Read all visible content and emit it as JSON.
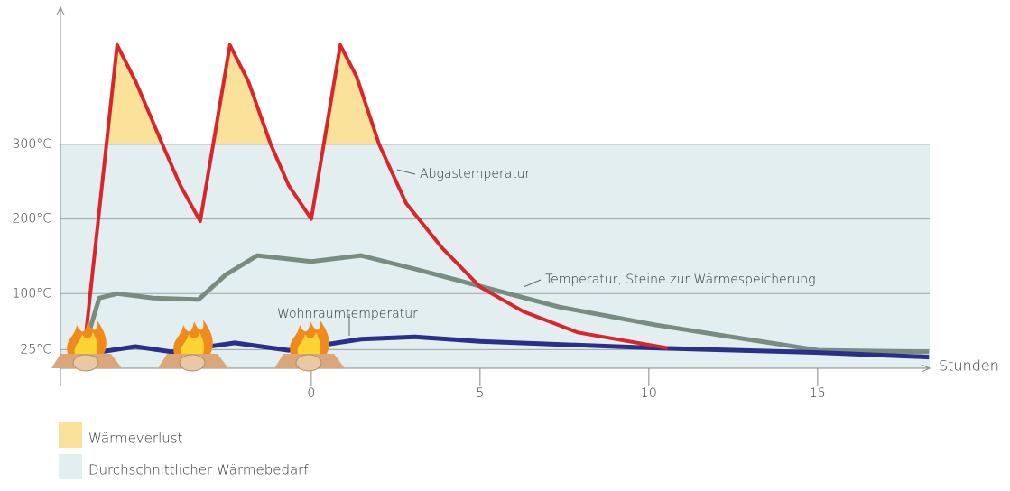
{
  "chart_data": {
    "type": "line",
    "x_label": "Stunden",
    "xlim": [
      -7.43,
      18.32
    ],
    "xticks": [
      0,
      5,
      10,
      15
    ],
    "ylim": [
      0,
      480
    ],
    "yticks": [
      {
        "value": 25,
        "label": "25°C"
      },
      {
        "value": 100,
        "label": "100°C"
      },
      {
        "value": 200,
        "label": "200°C"
      },
      {
        "value": 300,
        "label": "300°C"
      }
    ],
    "grid": true,
    "areas": [
      {
        "name": "Wärmeverlust",
        "color": "#fbe29b",
        "above": 300
      },
      {
        "name": "Durchschnittlicher Wärmebedarf",
        "color": "#e2eef0",
        "range": [
          0,
          300
        ]
      }
    ],
    "series": [
      {
        "name": "Abgastemperatur",
        "color": "#d9262a",
        "x": [
          -6.68,
          -5.75,
          -5.21,
          -4.41,
          -3.88,
          -3.29,
          -2.41,
          -1.87,
          -1.2,
          -0.67,
          0,
          0.86,
          1.34,
          2.01,
          2.81,
          3.88,
          5,
          6.28,
          7.89,
          10.56
        ],
        "values": [
          44,
          433,
          385,
          300,
          245,
          197,
          433,
          385,
          300,
          245,
          200,
          433,
          391,
          300,
          221,
          161,
          109,
          76,
          48,
          27
        ]
      },
      {
        "name": "Temperatur, Steine zur Wärmespeicherung",
        "color": "#7a8c80",
        "x": [
          -6.68,
          -6.28,
          -5.75,
          -4.68,
          -3.34,
          -2.54,
          -1.6,
          0,
          1.47,
          3.07,
          5,
          7.35,
          10.21,
          12.17,
          15.03,
          18.3
        ],
        "values": [
          34,
          94,
          100,
          94,
          92,
          125,
          151,
          143,
          151,
          133,
          110,
          82,
          58,
          44,
          24,
          22
        ]
      },
      {
        "name": "Wohnraumtemperatur",
        "color": "#2a2f8a",
        "x": [
          -6.68,
          -5.21,
          -4.14,
          -2.27,
          -0.67,
          1.47,
          3.07,
          5,
          10.21,
          15.03,
          18.3
        ],
        "values": [
          19,
          29,
          22,
          34,
          24,
          39,
          42,
          36,
          27,
          21,
          15
        ]
      }
    ]
  }
}
